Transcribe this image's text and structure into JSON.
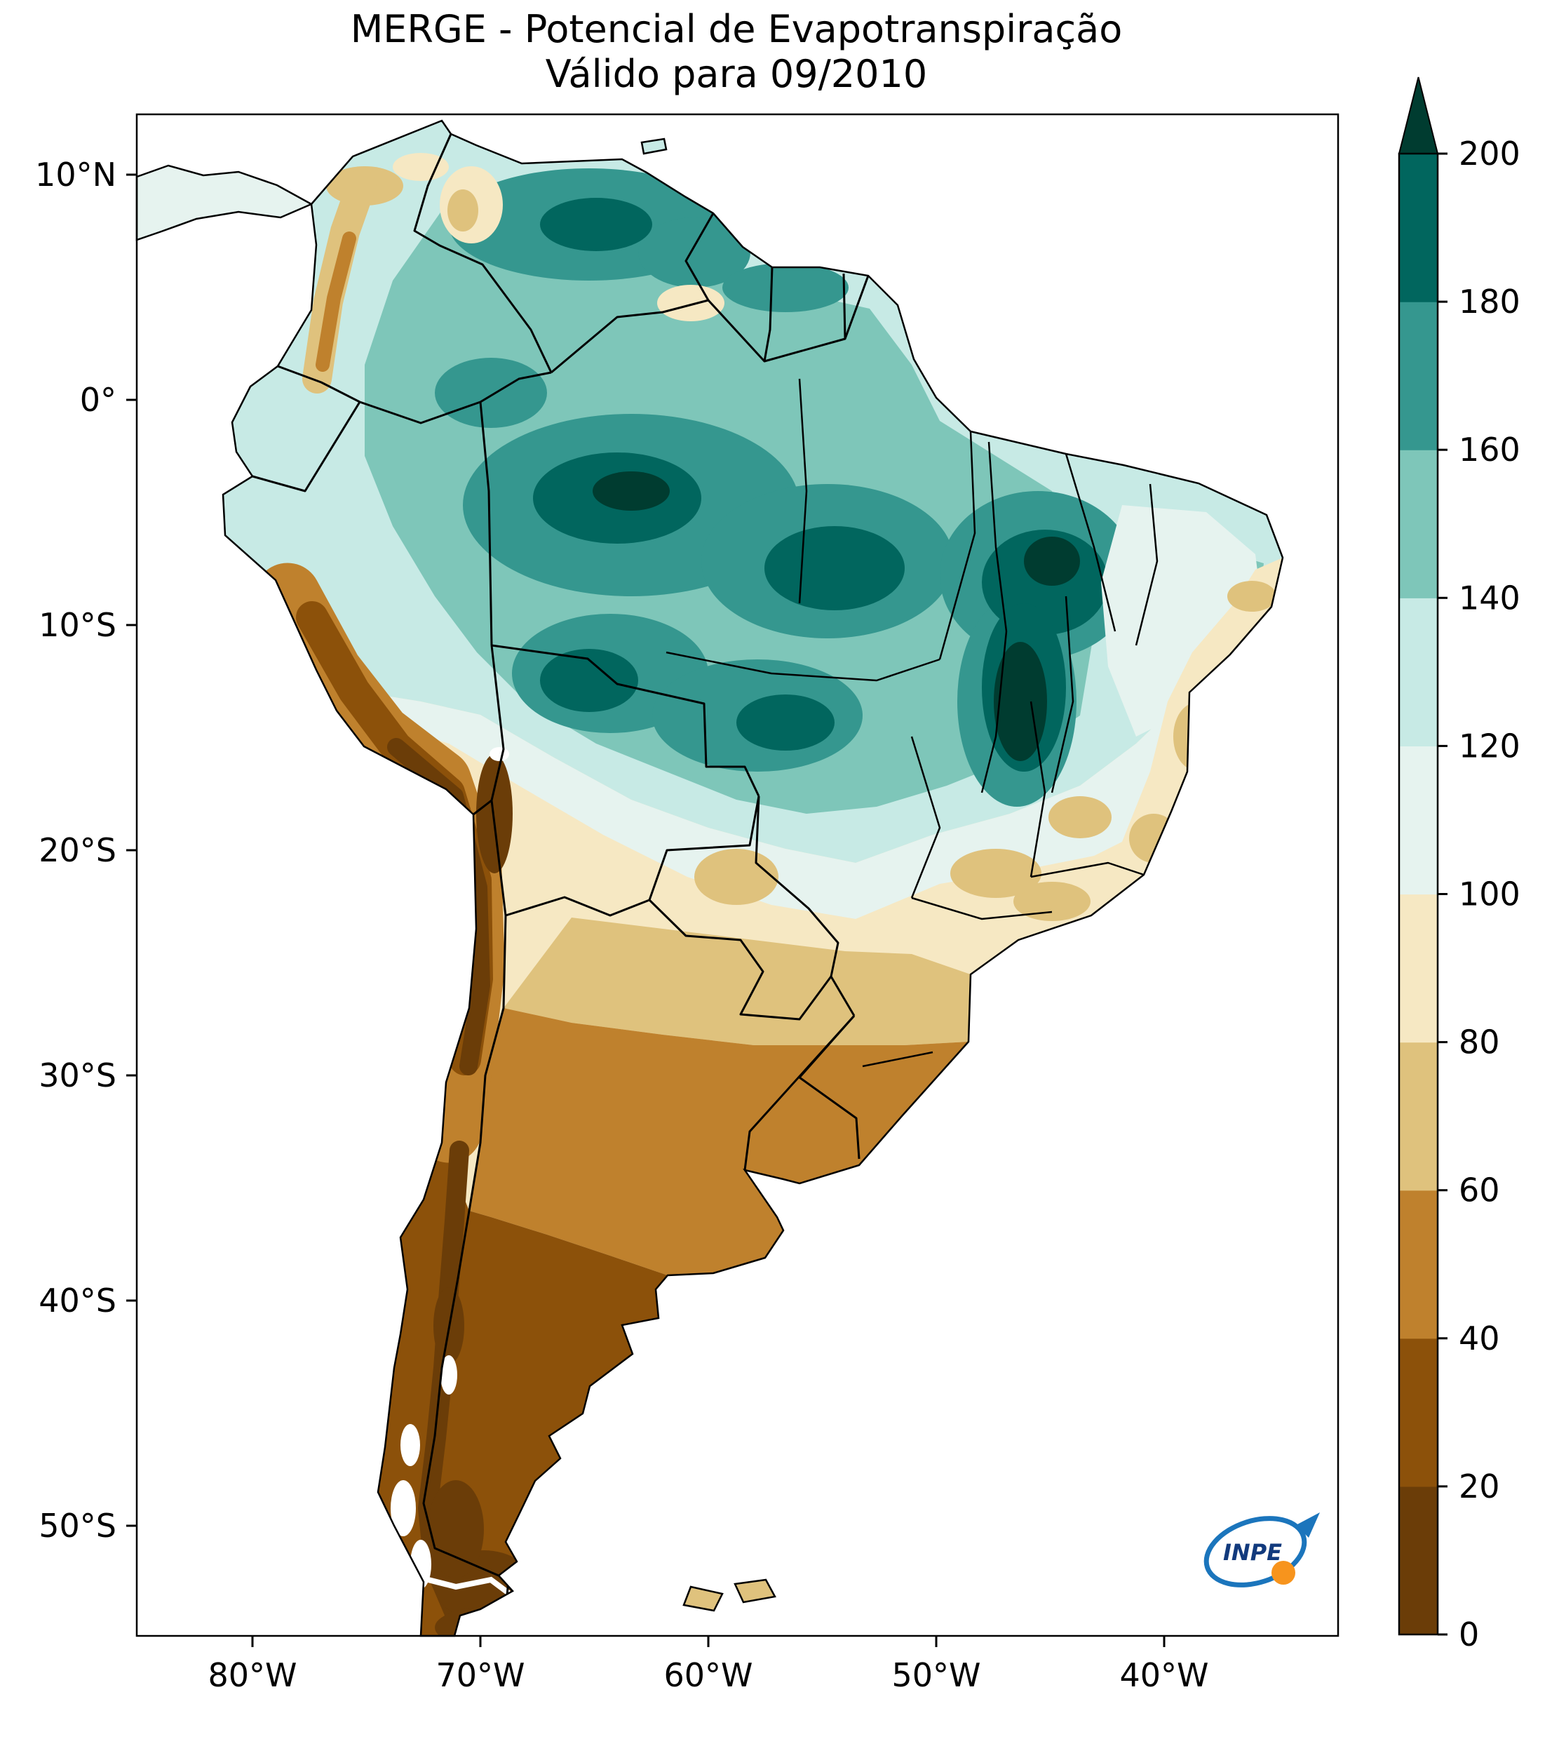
{
  "title": {
    "line1": "MERGE - Potencial de Evapotranspiração",
    "line2": "Válido para 09/2010"
  },
  "axes": {
    "lat_ticks": [
      "10°N",
      "0°",
      "10°S",
      "20°S",
      "30°S",
      "40°S",
      "50°S"
    ],
    "lon_ticks": [
      "80°W",
      "70°W",
      "60°W",
      "50°W",
      "40°W"
    ]
  },
  "colorbar": {
    "ticks": [
      "0",
      "20",
      "40",
      "60",
      "80",
      "100",
      "120",
      "140",
      "160",
      "180",
      "200"
    ],
    "colors": [
      "#6B3D08",
      "#8C510A",
      "#BF812D",
      "#DFC27D",
      "#F6E8C3",
      "#E6F3EF",
      "#C7EAE5",
      "#7EC6B9",
      "#35978F",
      "#01665E"
    ],
    "extend_color": "#003C30",
    "orientation": "vertical",
    "range": [
      0,
      200
    ]
  },
  "logo": {
    "label": "INPE",
    "swoosh_color": "#1B75BC",
    "ball_color": "#F7941D",
    "text_color": "#123A7D"
  }
}
